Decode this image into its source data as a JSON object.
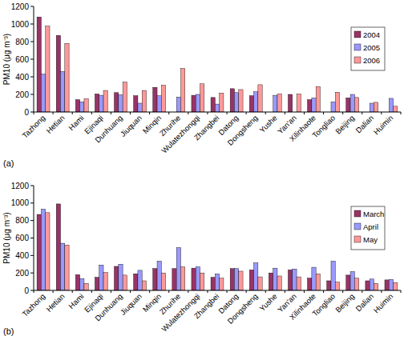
{
  "chart_data": [
    {
      "type": "bar",
      "y_label": "PM10 (μg m⁻³)",
      "annotations": [
        "(a)"
      ],
      "categories": [
        "Tazhong",
        "Hetian",
        "Hami",
        "Ejinaqi",
        "Dunhuang",
        "Jiuquan",
        "Minqin",
        "Zhurihe",
        "Wulatezhongqi",
        "Zhangbei",
        "Datong",
        "Dongsheng",
        "Yushe",
        "Yan'an",
        "Xilinhaote",
        "Tongliao",
        "Beijing",
        "Dalian",
        "Huimin"
      ],
      "series": [
        {
          "name": "2004",
          "color": "#993366",
          "values": [
            1080,
            870,
            140,
            205,
            220,
            185,
            280,
            null,
            190,
            165,
            265,
            185,
            null,
            200,
            140,
            null,
            160,
            null,
            null
          ]
        },
        {
          "name": "2005",
          "color": "#9999ff",
          "values": [
            430,
            460,
            115,
            190,
            195,
            100,
            185,
            170,
            200,
            90,
            220,
            230,
            190,
            null,
            160,
            115,
            200,
            100,
            155
          ]
        },
        {
          "name": "2006",
          "color": "#ff9999",
          "values": [
            975,
            780,
            150,
            245,
            340,
            245,
            305,
            495,
            320,
            215,
            255,
            310,
            205,
            205,
            290,
            225,
            165,
            110,
            65
          ]
        }
      ],
      "ylim": [
        0,
        1200
      ],
      "yticks": [
        0,
        200,
        400,
        600,
        800,
        1000,
        1200
      ],
      "grid": false,
      "legend": "upper right"
    },
    {
      "type": "bar",
      "y_label": "PM10 (μg m⁻³)",
      "annotations": [
        "(b)"
      ],
      "categories": [
        "Tazhong",
        "Hetian",
        "Hami",
        "Ejinaqi",
        "Dunhuang",
        "Jiuquan",
        "Minqin",
        "Zhurihe",
        "Wulatezhongqi",
        "Zhangbei",
        "Datong",
        "Dongsheng",
        "Yushe",
        "Yan'an",
        "Xilinhaote",
        "Tongliao",
        "Beijing",
        "Dalian",
        "Huimin"
      ],
      "series": [
        {
          "name": "March",
          "color": "#993366",
          "values": [
            870,
            990,
            180,
            150,
            275,
            190,
            250,
            250,
            255,
            150,
            250,
            235,
            200,
            235,
            140,
            110,
            175,
            110,
            120
          ]
        },
        {
          "name": "April",
          "color": "#9999ff",
          "values": [
            930,
            540,
            135,
            290,
            300,
            230,
            335,
            490,
            270,
            190,
            250,
            315,
            255,
            245,
            265,
            335,
            215,
            130,
            125
          ]
        },
        {
          "name": "May",
          "color": "#ff9999",
          "values": [
            890,
            520,
            80,
            205,
            175,
            110,
            200,
            270,
            200,
            140,
            220,
            155,
            165,
            155,
            190,
            95,
            140,
            80,
            90
          ]
        }
      ],
      "ylim": [
        0,
        1200
      ],
      "yticks": [
        0,
        200,
        400,
        600,
        800,
        1000,
        1200
      ],
      "grid": false,
      "legend": "upper right"
    }
  ]
}
